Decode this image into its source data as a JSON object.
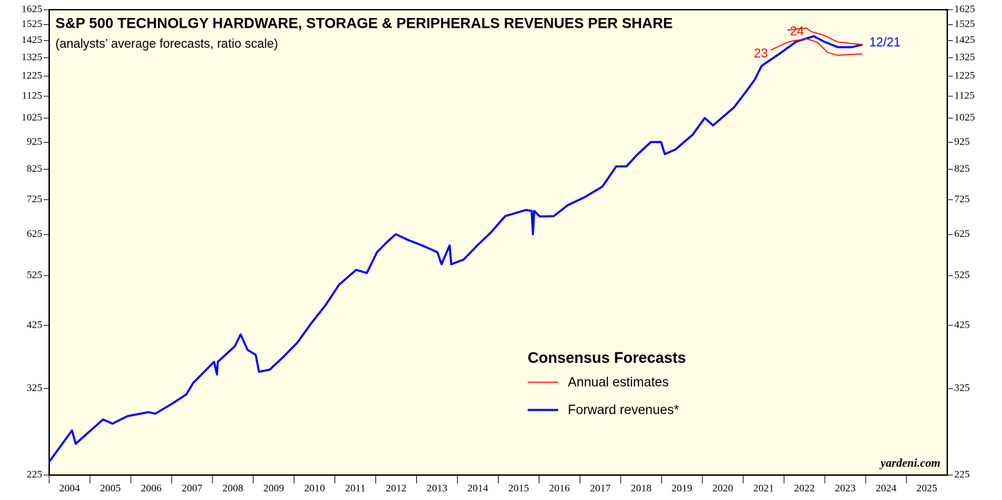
{
  "chart_data": {
    "type": "line",
    "title": "S&P 500 TECHNOLGY HARDWARE, STORAGE & PERIPHERALS REVENUES PER SHARE",
    "subtitle": "(analysts’ average forecasts, ratio scale)",
    "credit": "yardeni.com",
    "log": true,
    "ylim": [
      225,
      1625
    ],
    "yticks": [
      225,
      325,
      425,
      525,
      625,
      725,
      825,
      925,
      1025,
      1125,
      1225,
      1325,
      1425,
      1525,
      1625
    ],
    "xlim": [
      2004,
      2026
    ],
    "xticks": [
      2004,
      2005,
      2006,
      2007,
      2008,
      2009,
      2010,
      2011,
      2012,
      2013,
      2014,
      2015,
      2016,
      2017,
      2018,
      2019,
      2020,
      2021,
      2022,
      2023,
      2024,
      2025
    ],
    "legend": {
      "title": "Consensus Forecasts",
      "annual": "Annual estimates"
    },
    "series": [
      {
        "name": "Forward revenues*",
        "label": "12/21",
        "color": "#0000ff",
        "x": [
          2004.0,
          2004.56,
          2004.65,
          2005.32,
          2005.55,
          2005.92,
          2006.43,
          2006.6,
          2007.02,
          2007.36,
          2007.53,
          2008.04,
          2008.11,
          2008.13,
          2008.55,
          2008.69,
          2008.86,
          2009.06,
          2009.14,
          2009.4,
          2009.74,
          2010.08,
          2010.42,
          2010.76,
          2011.1,
          2011.52,
          2011.78,
          2012.03,
          2012.29,
          2012.49,
          2012.79,
          2013.13,
          2013.51,
          2013.61,
          2013.81,
          2013.85,
          2014.15,
          2014.49,
          2014.83,
          2015.17,
          2015.68,
          2015.82,
          2015.85,
          2015.88,
          2016.02,
          2016.36,
          2016.7,
          2017.12,
          2017.55,
          2017.89,
          2018.14,
          2018.4,
          2018.74,
          2018.99,
          2019.08,
          2019.33,
          2019.76,
          2020.06,
          2020.26,
          2020.77,
          2021.03,
          2021.28,
          2021.45,
          2021.88,
          2022.3,
          2022.73,
          2022.98,
          2023.32,
          2023.66,
          2023.92
        ],
        "values": [
          238,
          272,
          257,
          285,
          280,
          289,
          294,
          292,
          305,
          317,
          333,
          364,
          345,
          364,
          389,
          409,
          383,
          375,
          349,
          352,
          372,
          395,
          429,
          462,
          505,
          538,
          531,
          580,
          607,
          626,
          611,
          597,
          580,
          551,
          597,
          551,
          562,
          597,
          632,
          676,
          694,
          691,
          626,
          691,
          675,
          676,
          708,
          733,
          766,
          835,
          835,
          877,
          926,
          926,
          880,
          896,
          955,
          1026,
          994,
          1072,
          1137,
          1206,
          1280,
          1346,
          1419,
          1452,
          1419,
          1386,
          1386,
          1401
        ]
      },
      {
        "name": "23",
        "color": "#ff0000",
        "x": [
          2021.67,
          2022.13,
          2022.55,
          2022.81,
          2023.07,
          2023.32,
          2023.92
        ],
        "values": [
          1369,
          1419,
          1436,
          1416,
          1355,
          1339,
          1347
        ]
      },
      {
        "name": "24",
        "color": "#ff0000",
        "x": [
          2022.08,
          2022.55,
          2022.67,
          2022.98,
          2023.32,
          2023.92
        ],
        "values": [
          1490,
          1503,
          1480,
          1458,
          1416,
          1401
        ]
      }
    ]
  }
}
